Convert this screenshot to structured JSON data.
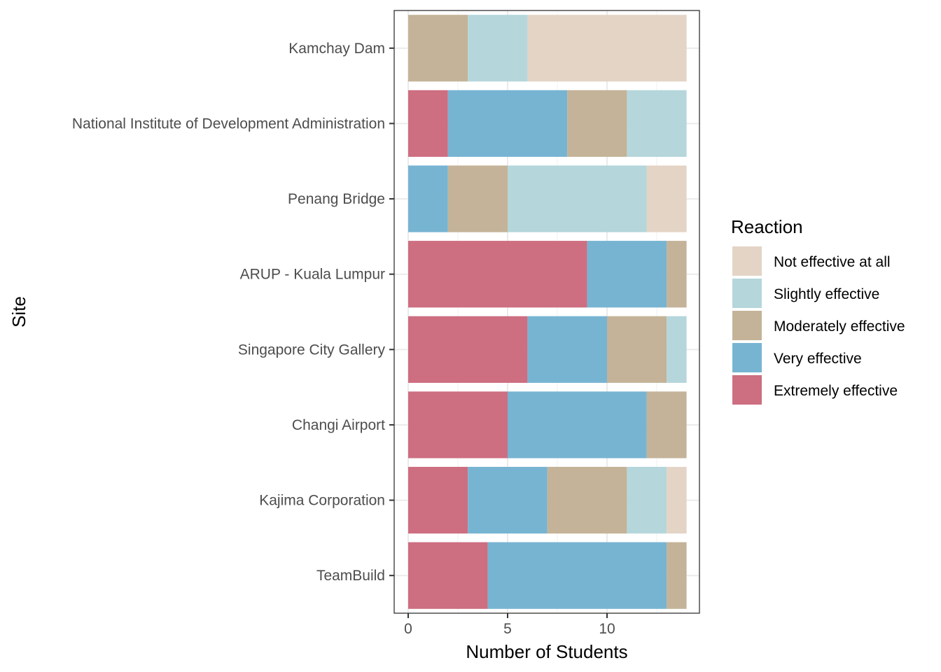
{
  "chart_data": {
    "type": "bar",
    "orientation": "horizontal",
    "stacked": true,
    "xlabel": "Number of Students",
    "ylabel": "Site",
    "xlim": [
      0,
      14
    ],
    "x_ticks": [
      0,
      5,
      10
    ],
    "categories": [
      "Kamchay Dam",
      "National Institute of Development Administration",
      "Penang Bridge",
      "ARUP - Kuala Lumpur",
      "Singapore City Gallery",
      "Changi Airport",
      "Kajima Corporation",
      "TeamBuild"
    ],
    "series": [
      {
        "name": "Extremely effective",
        "color": "#CD6E81",
        "values": [
          0,
          2,
          0,
          9,
          6,
          5,
          3,
          4
        ]
      },
      {
        "name": "Very effective",
        "color": "#77B4D2",
        "values": [
          0,
          6,
          2,
          4,
          4,
          7,
          4,
          9
        ]
      },
      {
        "name": "Moderately effective",
        "color": "#C4B398",
        "values": [
          3,
          3,
          3,
          1,
          3,
          2,
          4,
          1
        ]
      },
      {
        "name": "Slightly effective",
        "color": "#B5D6DB",
        "values": [
          3,
          3,
          7,
          0,
          1,
          0,
          2,
          0
        ]
      },
      {
        "name": "Not effective at all",
        "color": "#E3D4C6",
        "values": [
          8,
          0,
          2,
          0,
          0,
          0,
          1,
          0
        ]
      }
    ],
    "legend": {
      "title": "Reaction",
      "placement": "right",
      "order": [
        "Not effective at all",
        "Slightly effective",
        "Moderately effective",
        "Very effective",
        "Extremely effective"
      ]
    },
    "grid": true
  }
}
